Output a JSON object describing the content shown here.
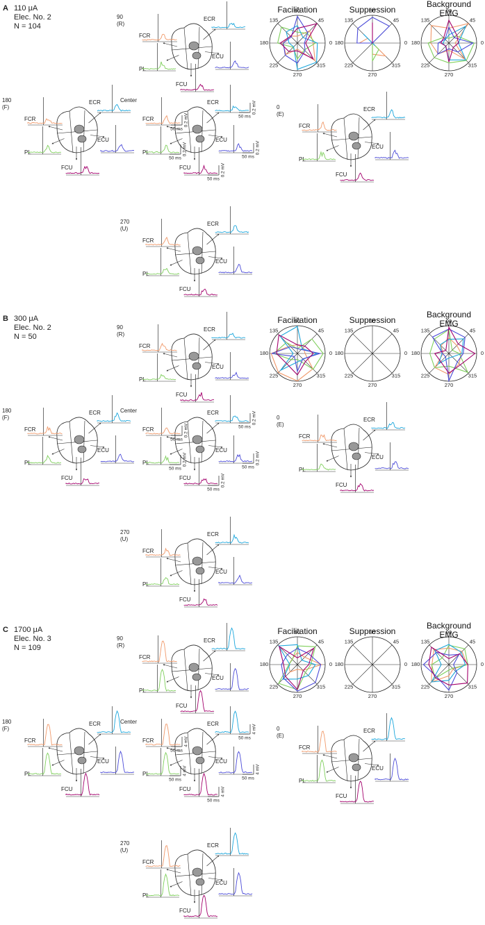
{
  "muscles": [
    {
      "name": "FCR",
      "color": "#f0996a"
    },
    {
      "name": "PL",
      "color": "#7fcf5c"
    },
    {
      "name": "ECR",
      "color": "#1ba6dc"
    },
    {
      "name": "ECU",
      "color": "#4b4bd8"
    },
    {
      "name": "FCU",
      "color": "#a3006c"
    }
  ],
  "polar_titles": [
    "Facilitation",
    "Suppression",
    "Background EMG"
  ],
  "polar_angles": [
    90,
    45,
    0,
    315,
    270,
    225,
    180,
    135
  ],
  "panels": [
    {
      "label": "A",
      "current": "110 μA",
      "electrode": "Elec. No. 2",
      "n": "N = 104",
      "positions": [
        {
          "label": "90",
          "sub": "(R)"
        },
        {
          "label": "180",
          "sub": "(F)"
        },
        {
          "label": "Center"
        },
        {
          "label": "0",
          "sub": "(E)"
        },
        {
          "label": "270",
          "sub": "(U)"
        }
      ],
      "scale": {
        "amplitude": "0.2 mV",
        "time": "50 ms"
      }
    },
    {
      "label": "B",
      "current": "300 μA",
      "electrode": "Elec. No. 2",
      "n": "N = 50",
      "positions": [
        {
          "label": "90",
          "sub": "(R)"
        },
        {
          "label": "180",
          "sub": "(F)"
        },
        {
          "label": "Center"
        },
        {
          "label": "0",
          "sub": "(E)"
        },
        {
          "label": "270",
          "sub": "(U)"
        }
      ],
      "scale": {
        "amplitude": "0.2 mV",
        "time": "50 ms"
      }
    },
    {
      "label": "C",
      "current": "1700 μA",
      "electrode": "Elec. No. 3",
      "n": "N = 109",
      "positions": [
        {
          "label": "90",
          "sub": "(R)"
        },
        {
          "label": "180",
          "sub": "(F)"
        },
        {
          "label": "Center"
        },
        {
          "label": "0",
          "sub": "(E)"
        },
        {
          "label": "270",
          "sub": "(U)"
        }
      ],
      "scale": {
        "amplitude": "4 mV",
        "time": "50 ms"
      }
    }
  ]
}
